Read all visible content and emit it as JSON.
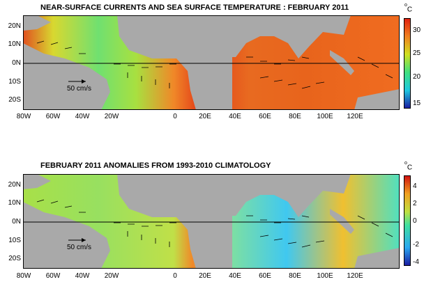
{
  "top_panel": {
    "title": "NEAR-SURFACE CURRENTS AND SEA SURFACE TEMPERATURE : FEBRUARY 2011",
    "reference_arrow_label": "50 cm/s",
    "colorbar": {
      "unit_base": "o",
      "unit_main": "C",
      "ticks": [
        "30",
        "25",
        "20",
        "15"
      ]
    }
  },
  "bottom_panel": {
    "title": "FEBRUARY 2011 ANOMALIES FROM 1993-2010 CLIMATOLOGY",
    "reference_arrow_label": "50 cm/s",
    "colorbar": {
      "unit_base": "o",
      "unit_main": "C",
      "ticks": [
        "4",
        "2",
        "0",
        "-2",
        "-4"
      ]
    }
  },
  "lat_ticks": [
    "20N",
    "10N",
    "0N",
    "10S",
    "20S"
  ],
  "lon_ticks": [
    "80W",
    "60W",
    "40W",
    "20W",
    "0",
    "20E",
    "40E",
    "60E",
    "80E",
    "100E",
    "120E"
  ],
  "colors": {
    "land": "#a9a9a9",
    "sst_colormap": [
      "#1a1aa0",
      "#1ec8e0",
      "#40e080",
      "#d0e020",
      "#f08020",
      "#e02010"
    ],
    "anomaly_colormap": [
      "#1a1aa0",
      "#2aa8f0",
      "#40e0a0",
      "#c0e040",
      "#f0a020",
      "#d01010"
    ]
  }
}
